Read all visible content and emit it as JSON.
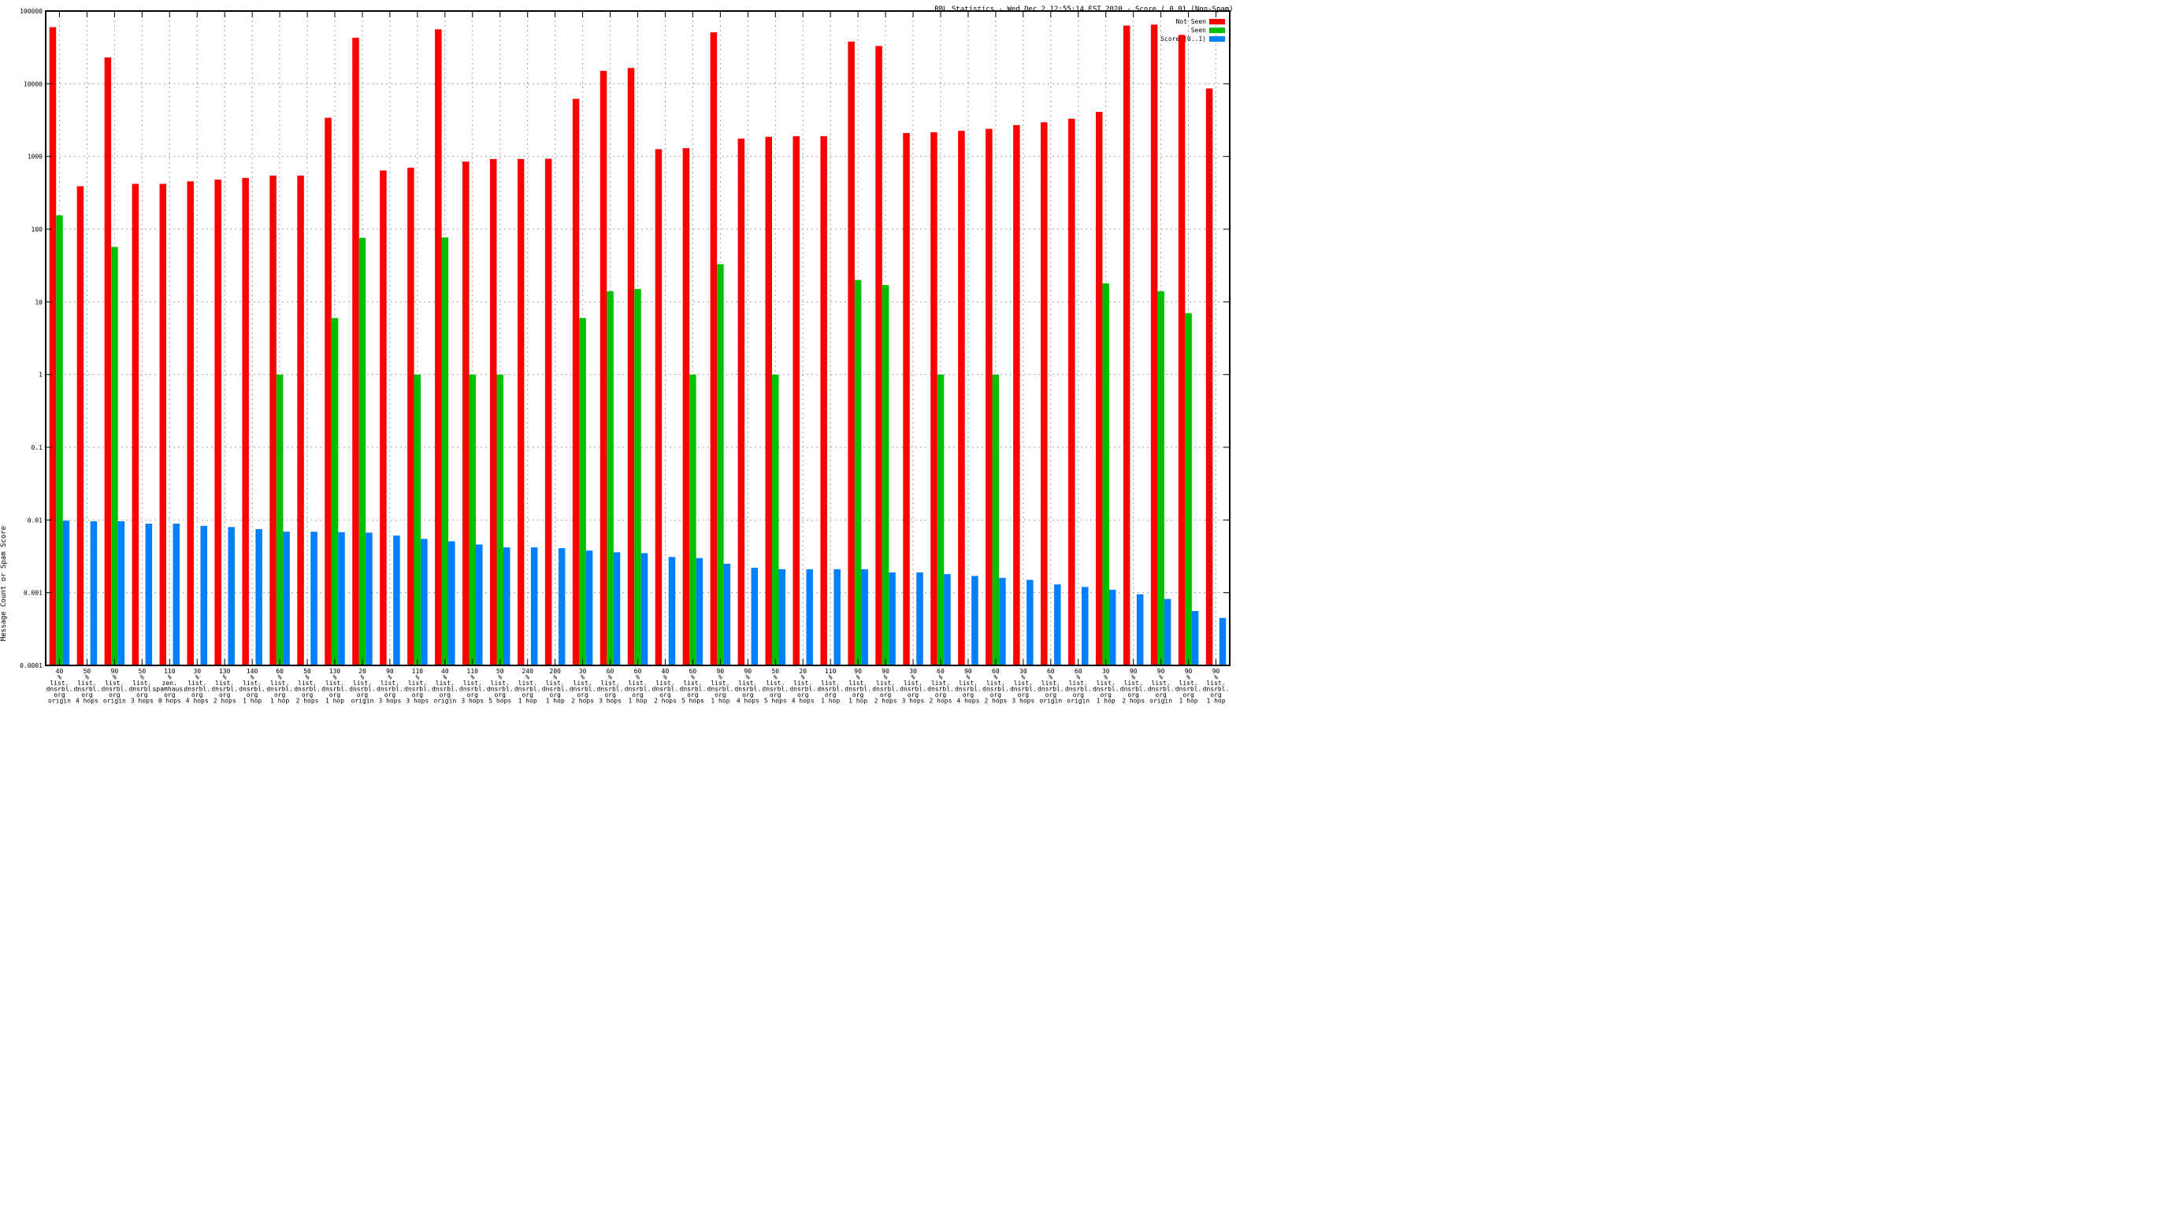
{
  "chart_data": {
    "type": "bar",
    "title": "RBL Statistics - Wed Dec  2 12:55:14 EST 2020 - Score ( 0.01 (Non-Spam)",
    "xlabel": "",
    "ylabel": "Message Count or Spam Score",
    "yscale": "log",
    "ylim": [
      0.0001,
      100000
    ],
    "yticks": [
      "0.0001",
      "0.001",
      "0.01",
      "0.1",
      "1",
      "10",
      "100",
      "1000",
      "10000",
      "100000"
    ],
    "grid": true,
    "legend_position": "top-right",
    "series": [
      {
        "name": "Not Seen",
        "color": "#ff0000",
        "values": [
          60000,
          390,
          23000,
          420,
          420,
          455,
          480,
          505,
          545,
          545,
          3400,
          43000,
          640,
          700,
          56000,
          850,
          920,
          920,
          930,
          6200,
          15000,
          16500,
          1260,
          1300,
          51000,
          1760,
          1860,
          1900,
          1900,
          38000,
          33000,
          2100,
          2150,
          2250,
          2400,
          2700,
          2950,
          3300,
          4100,
          63000,
          65000,
          47000,
          8600
        ]
      },
      {
        "name": "Seen",
        "color": "#00c000",
        "values": [
          155,
          null,
          57,
          null,
          null,
          null,
          null,
          null,
          1,
          null,
          6,
          76,
          null,
          1,
          77,
          1,
          1,
          null,
          null,
          6,
          14,
          15,
          null,
          1,
          33,
          null,
          1,
          null,
          null,
          20,
          17,
          null,
          1,
          null,
          1,
          null,
          null,
          null,
          18,
          null,
          14,
          7,
          null
        ]
      },
      {
        "name": "Score (0..1)",
        "color": "#0080ff",
        "values": [
          0.0098,
          0.0096,
          0.0096,
          0.0089,
          0.0089,
          0.0083,
          0.008,
          0.0075,
          0.0069,
          0.0069,
          0.0068,
          0.0067,
          0.0061,
          0.0055,
          0.0051,
          0.0046,
          0.0042,
          0.0042,
          0.0041,
          0.0038,
          0.0036,
          0.0035,
          0.0031,
          0.003,
          0.0025,
          0.0022,
          0.0021,
          0.0021,
          0.0021,
          0.0021,
          0.0019,
          0.0019,
          0.0018,
          0.0017,
          0.0016,
          0.0015,
          0.0013,
          0.0012,
          0.0011,
          0.00095,
          0.00082,
          0.00056,
          0.00045
        ]
      }
    ],
    "categories": [
      [
        "40",
        "%",
        "list.",
        "dnsrbl.",
        "org",
        "origin"
      ],
      [
        "50",
        "%",
        "list.",
        "dnsrbl.",
        "org",
        "4 hops"
      ],
      [
        "90",
        "%",
        "list.",
        "dnsrbl.",
        "org",
        "origin"
      ],
      [
        "50",
        "%",
        "list.",
        "dnsrbl.",
        "org",
        "3 hops"
      ],
      [
        "110",
        "%",
        "zen.",
        "spamhaus.",
        "org",
        "0 hops"
      ],
      [
        "30",
        "%",
        "list.",
        "dnsrbl.",
        "org",
        "4 hops"
      ],
      [
        "130",
        "%",
        "list.",
        "dnsrbl.",
        "org",
        "2 hops"
      ],
      [
        "140",
        "%",
        "list.",
        "dnsrbl.",
        "org",
        "1 hop"
      ],
      [
        "60",
        "%",
        "list.",
        "dnsrbl.",
        "org",
        "1 hop"
      ],
      [
        "50",
        "%",
        "list.",
        "dnsrbl.",
        "org",
        "2 hops"
      ],
      [
        "130",
        "%",
        "list.",
        "dnsrbl.",
        "org",
        "1 hop"
      ],
      [
        "20",
        "%",
        "list.",
        "dnsrbl.",
        "org",
        "origin"
      ],
      [
        "90",
        "%",
        "list.",
        "dnsrbl.",
        "org",
        "3 hops"
      ],
      [
        "110",
        "%",
        "list.",
        "dnsrbl.",
        "org",
        "3 hops"
      ],
      [
        "40",
        "%",
        "list.",
        "dnsrbl.",
        "org",
        "origin"
      ],
      [
        "110",
        "%",
        "list.",
        "dnsrbl.",
        "org",
        "3 hops"
      ],
      [
        "50",
        "%",
        "list.",
        "dnsrbl.",
        "org",
        "5 hops"
      ],
      [
        "240",
        "%",
        "list.",
        "dnsrbl.",
        "org",
        "1 hop"
      ],
      [
        "200",
        "%",
        "list.",
        "dnsrbl.",
        "org",
        "1 hop"
      ],
      [
        "30",
        "%",
        "list.",
        "dnsrbl.",
        "org",
        "2 hops"
      ],
      [
        "60",
        "%",
        "list.",
        "dnsrbl.",
        "org",
        "3 hops"
      ],
      [
        "60",
        "%",
        "list.",
        "dnsrbl.",
        "org",
        "1 hop"
      ],
      [
        "40",
        "%",
        "list.",
        "dnsrbl.",
        "org",
        "2 hops"
      ],
      [
        "60",
        "%",
        "list.",
        "dnsrbl.",
        "org",
        "5 hops"
      ],
      [
        "90",
        "%",
        "list.",
        "dnsrbl.",
        "org",
        "1 hop"
      ],
      [
        "90",
        "%",
        "list.",
        "dnsrbl.",
        "org",
        "4 hops"
      ],
      [
        "50",
        "%",
        "list.",
        "dnsrbl.",
        "org",
        "5 hops"
      ],
      [
        "20",
        "%",
        "list.",
        "dnsrbl.",
        "org",
        "4 hops"
      ],
      [
        "110",
        "%",
        "list.",
        "dnsrbl.",
        "org",
        "1 hop"
      ],
      [
        "90",
        "%",
        "list.",
        "dnsrbl.",
        "org",
        "1 hop"
      ],
      [
        "90",
        "%",
        "list.",
        "dnsrbl.",
        "org",
        "2 hops"
      ],
      [
        "30",
        "%",
        "list.",
        "dnsrbl.",
        "org",
        "3 hops"
      ],
      [
        "60",
        "%",
        "list.",
        "dnsrbl.",
        "org",
        "2 hops"
      ],
      [
        "90",
        "%",
        "list.",
        "dnsrbl.",
        "org",
        "4 hops"
      ],
      [
        "60",
        "%",
        "list.",
        "dnsrbl.",
        "org",
        "2 hops"
      ],
      [
        "30",
        "%",
        "list.",
        "dnsrbl.",
        "org",
        "3 hops"
      ],
      [
        "60",
        "%",
        "list.",
        "dnsrbl.",
        "org",
        "origin"
      ],
      [
        "60",
        "%",
        "list.",
        "dnsrbl.",
        "org",
        "origin"
      ],
      [
        "30",
        "%",
        "list.",
        "dnsrbl.",
        "org",
        "1 hop"
      ],
      [
        "90",
        "%",
        "list.",
        "dnsrbl.",
        "org",
        "2 hops"
      ],
      [
        "90",
        "%",
        "list.",
        "dnsrbl.",
        "org",
        "origin"
      ],
      [
        "90",
        "%",
        "list.",
        "dnsrbl.",
        "org",
        "1 hop"
      ],
      [
        "90",
        "%",
        "list.",
        "dnsrbl.",
        "org",
        "1 hop"
      ]
    ]
  }
}
